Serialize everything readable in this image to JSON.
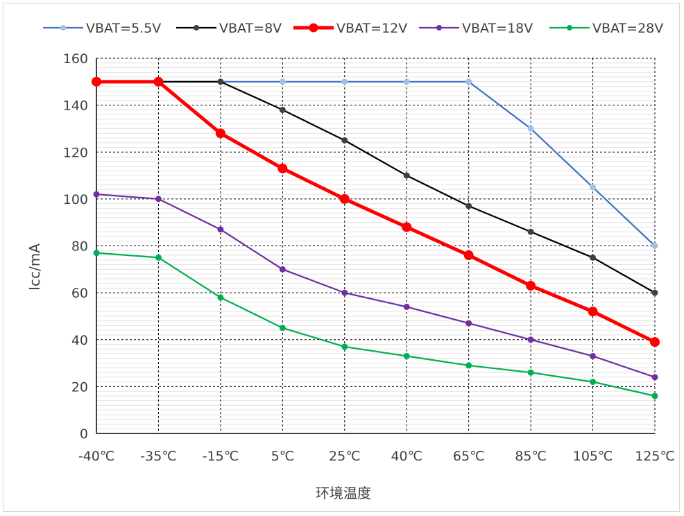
{
  "chart_data": {
    "type": "line",
    "title": "",
    "xlabel": "环境温度",
    "ylabel": "Icc/mA",
    "categories": [
      "-40℃",
      "-35℃",
      "-15℃",
      "5℃",
      "25℃",
      "40℃",
      "65℃",
      "85℃",
      "105℃",
      "125℃"
    ],
    "ylim": [
      0,
      160
    ],
    "yticks": [
      0,
      20,
      40,
      60,
      80,
      100,
      120,
      140,
      160
    ],
    "grid": true,
    "legend_position": "top",
    "series": [
      {
        "name": "VBAT=5.5V",
        "line_color": "#4472c4",
        "marker_color": "#9dc3e6",
        "line_style": "thin",
        "values": [
          150,
          150,
          150,
          150,
          150,
          150,
          150,
          130,
          105,
          80
        ]
      },
      {
        "name": "VBAT=8V",
        "line_color": "#000000",
        "marker_color": "#404040",
        "line_style": "thin",
        "values": [
          150,
          150,
          150,
          138,
          125,
          110,
          97,
          86,
          75,
          60
        ]
      },
      {
        "name": "VBAT=12V",
        "line_color": "#ff0000",
        "marker_color": "#ff0000",
        "line_style": "thick",
        "values": [
          150,
          150,
          128,
          113,
          100,
          88,
          76,
          63,
          52,
          39
        ]
      },
      {
        "name": "VBAT=18V",
        "line_color": "#7030a0",
        "marker_color": "#7030a0",
        "line_style": "thin",
        "values": [
          102,
          100,
          87,
          70,
          60,
          54,
          47,
          40,
          33,
          24
        ]
      },
      {
        "name": "VBAT=28V",
        "line_color": "#00b050",
        "marker_color": "#00b050",
        "line_style": "thin",
        "values": [
          77,
          75,
          58,
          45,
          37,
          33,
          29,
          26,
          22,
          16
        ]
      }
    ]
  }
}
